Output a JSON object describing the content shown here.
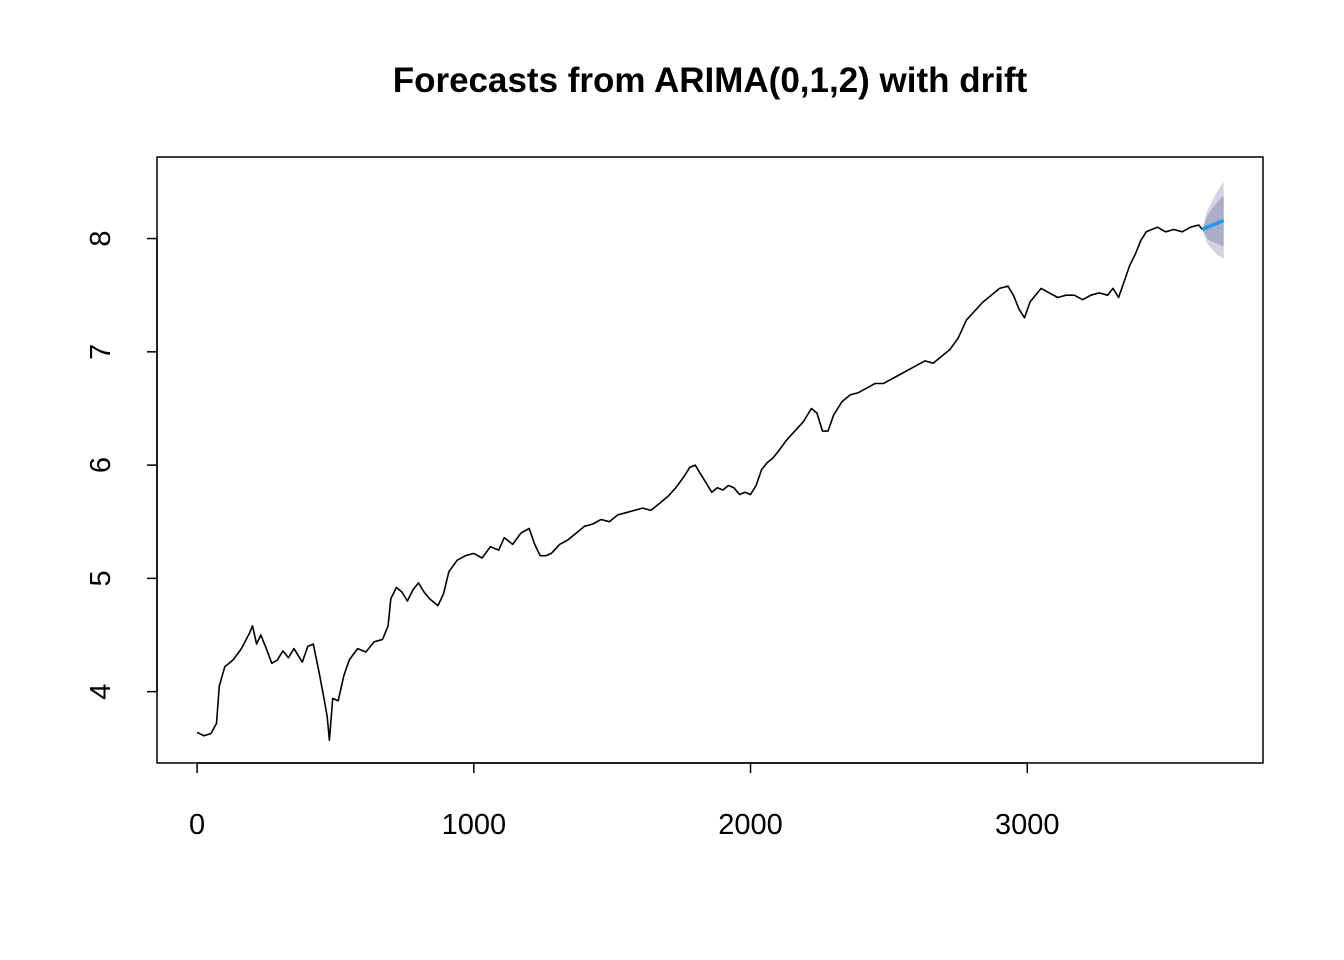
{
  "chart_data": {
    "type": "line",
    "title": "Forecasts from ARIMA(0,1,2) with drift",
    "xlabel": "",
    "ylabel": "",
    "xlim": [
      -145,
      3852
    ],
    "ylim": [
      3.37,
      8.72
    ],
    "x_ticks": [
      0,
      1000,
      2000,
      3000
    ],
    "y_ticks": [
      4,
      5,
      6,
      7,
      8
    ],
    "x_tick_labels": [
      "0",
      "1000",
      "2000",
      "3000"
    ],
    "y_tick_labels": [
      "4",
      "5",
      "6",
      "7",
      "8"
    ],
    "grid": false,
    "legend": "none",
    "series": [
      {
        "role": "observed",
        "color": "#000000",
        "x": [
          0,
          25,
          50,
          70,
          80,
          100,
          130,
          160,
          190,
          200,
          215,
          230,
          250,
          270,
          290,
          310,
          330,
          350,
          380,
          400,
          420,
          440,
          460,
          470,
          478,
          490,
          510,
          530,
          550,
          580,
          610,
          640,
          670,
          690,
          700,
          720,
          740,
          760,
          780,
          800,
          820,
          840,
          870,
          890,
          910,
          940,
          970,
          1000,
          1030,
          1060,
          1090,
          1110,
          1140,
          1170,
          1200,
          1220,
          1240,
          1260,
          1280,
          1310,
          1340,
          1370,
          1400,
          1430,
          1460,
          1490,
          1520,
          1550,
          1580,
          1610,
          1640,
          1670,
          1700,
          1730,
          1760,
          1780,
          1800,
          1820,
          1840,
          1860,
          1880,
          1900,
          1920,
          1940,
          1960,
          1980,
          2000,
          2020,
          2040,
          2060,
          2080,
          2100,
          2130,
          2160,
          2190,
          2220,
          2240,
          2260,
          2280,
          2300,
          2330,
          2360,
          2390,
          2420,
          2450,
          2480,
          2510,
          2540,
          2570,
          2600,
          2630,
          2660,
          2690,
          2720,
          2750,
          2780,
          2810,
          2840,
          2870,
          2900,
          2930,
          2950,
          2970,
          2990,
          3010,
          3030,
          3050,
          3080,
          3110,
          3140,
          3170,
          3200,
          3230,
          3260,
          3290,
          3310,
          3330,
          3350,
          3370,
          3390,
          3410,
          3430,
          3450,
          3470,
          3500,
          3530,
          3560,
          3590,
          3620,
          3633
        ],
        "values": [
          3.64,
          3.61,
          3.63,
          3.72,
          4.05,
          4.22,
          4.28,
          4.38,
          4.52,
          4.58,
          4.42,
          4.5,
          4.38,
          4.25,
          4.28,
          4.36,
          4.3,
          4.38,
          4.26,
          4.4,
          4.42,
          4.18,
          3.92,
          3.78,
          3.57,
          3.94,
          3.92,
          4.14,
          4.28,
          4.38,
          4.35,
          4.44,
          4.46,
          4.58,
          4.82,
          4.92,
          4.88,
          4.8,
          4.9,
          4.96,
          4.88,
          4.82,
          4.76,
          4.86,
          5.06,
          5.16,
          5.2,
          5.22,
          5.18,
          5.28,
          5.25,
          5.36,
          5.3,
          5.4,
          5.44,
          5.3,
          5.2,
          5.2,
          5.22,
          5.3,
          5.34,
          5.4,
          5.46,
          5.48,
          5.52,
          5.5,
          5.56,
          5.58,
          5.6,
          5.62,
          5.6,
          5.66,
          5.72,
          5.8,
          5.9,
          5.98,
          6.0,
          5.92,
          5.84,
          5.76,
          5.8,
          5.78,
          5.82,
          5.8,
          5.74,
          5.76,
          5.74,
          5.82,
          5.96,
          6.02,
          6.06,
          6.12,
          6.22,
          6.3,
          6.38,
          6.5,
          6.46,
          6.3,
          6.3,
          6.44,
          6.56,
          6.62,
          6.64,
          6.68,
          6.72,
          6.72,
          6.76,
          6.8,
          6.84,
          6.88,
          6.92,
          6.9,
          6.96,
          7.02,
          7.12,
          7.28,
          7.36,
          7.44,
          7.5,
          7.56,
          7.58,
          7.5,
          7.38,
          7.3,
          7.44,
          7.5,
          7.56,
          7.52,
          7.48,
          7.5,
          7.5,
          7.46,
          7.5,
          7.52,
          7.5,
          7.56,
          7.48,
          7.62,
          7.76,
          7.86,
          7.98,
          8.06,
          8.08,
          8.1,
          8.06,
          8.08,
          8.06,
          8.1,
          8.12,
          8.08
        ]
      },
      {
        "role": "forecast",
        "color": "#2196F3",
        "x": [
          3633,
          3650,
          3670,
          3690,
          3710
        ],
        "values": [
          8.08,
          8.1,
          8.12,
          8.14,
          8.16
        ]
      }
    ],
    "intervals": [
      {
        "level": "95%",
        "color": "#D1D3E0",
        "x": [
          3633,
          3650,
          3670,
          3690,
          3710
        ],
        "lower": [
          8.08,
          7.96,
          7.9,
          7.85,
          7.82
        ],
        "upper": [
          8.08,
          8.24,
          8.34,
          8.43,
          8.5
        ]
      },
      {
        "level": "80%",
        "color": "#A9ADC6",
        "x": [
          3633,
          3650,
          3670,
          3690,
          3710
        ],
        "lower": [
          8.08,
          8.0,
          7.97,
          7.95,
          7.93
        ],
        "upper": [
          8.08,
          8.2,
          8.27,
          8.33,
          8.38
        ]
      }
    ]
  }
}
